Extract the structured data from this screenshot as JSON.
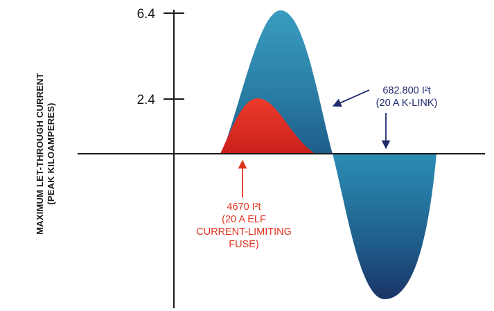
{
  "y_axis": {
    "label_line1": "MAXIMUM LET-THROUGH CURRENT",
    "label_line2": "(PEAK KILOAMPERES)",
    "ticks": [
      {
        "value": 6.4,
        "label": "6.4"
      },
      {
        "value": 2.4,
        "label": "2.4"
      }
    ]
  },
  "curves": {
    "k_link": {
      "peak_positive": 6.4,
      "color_light": "#3a9cc0",
      "color_dark": "#1b3f70"
    },
    "elf_fuse": {
      "peak": 2.4,
      "color_light": "#e2352a",
      "color_dark": "#c21f1a"
    }
  },
  "annotations": {
    "k_link": {
      "line1": "682.800 I²t",
      "line2": "(20 A K-LINK)",
      "color": "#1f2a6b"
    },
    "elf_fuse": {
      "line1": "4670 I²t",
      "line2": "(20 A ELF",
      "line3": "CURRENT-LIMITING",
      "line4": "FUSE)",
      "color": "#e0341f"
    }
  }
}
